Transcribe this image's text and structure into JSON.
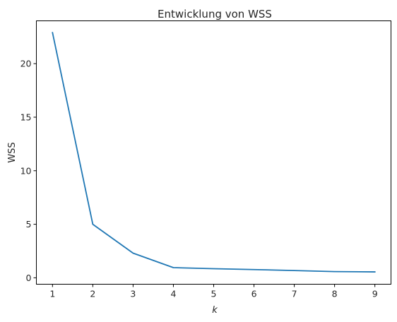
{
  "chart_data": {
    "type": "line",
    "title": "Entwicklung von WSS",
    "xlabel": "k",
    "ylabel": "WSS",
    "x": [
      1,
      2,
      3,
      4,
      5,
      6,
      7,
      8,
      9
    ],
    "series": [
      {
        "values": [
          22.9,
          5.0,
          2.3,
          0.95,
          0.85,
          0.77,
          0.68,
          0.58,
          0.55
        ]
      }
    ],
    "xlim": [
      0.6,
      9.4
    ],
    "ylim": [
      -0.6,
      24.0
    ],
    "xticks": [
      1,
      2,
      3,
      4,
      5,
      6,
      7,
      8,
      9
    ],
    "yticks": [
      0,
      5,
      10,
      15,
      20
    ],
    "grid": false,
    "line_color": "#1f77b4"
  }
}
